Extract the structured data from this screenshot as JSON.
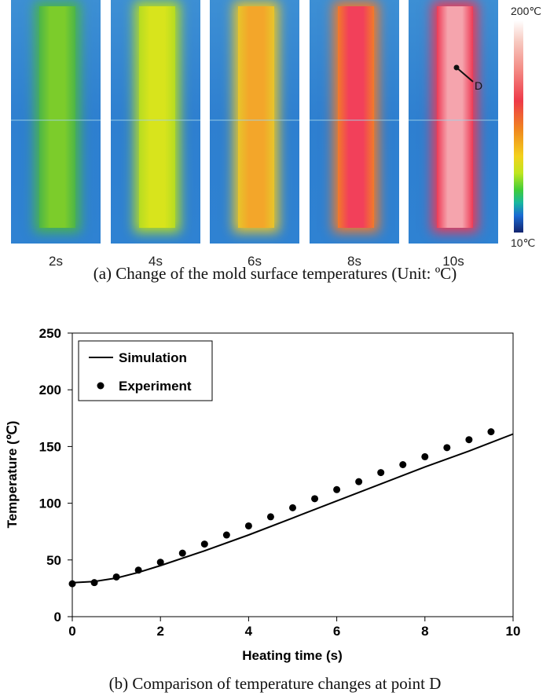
{
  "thermal_images": {
    "panels": [
      {
        "time": "2s",
        "core": "#7ccc2b",
        "edge": "#4cb548"
      },
      {
        "time": "4s",
        "core": "#d8e41c",
        "edge": "#b6dc22"
      },
      {
        "time": "6s",
        "core": "#f3a62a",
        "edge": "#e7c52b"
      },
      {
        "time": "8s",
        "core": "#f2405a",
        "edge": "#f17b2a"
      },
      {
        "time": "10s",
        "core": "#f5a4ad",
        "edge": "#ee3a55"
      }
    ],
    "scale_max": "200℃",
    "scale_min": "10℃",
    "point_label": "D"
  },
  "captions": {
    "a": "(a) Change of the mold surface temperatures (Unit: ºC)",
    "b": "(b) Comparison of temperature changes at point D"
  },
  "chart_data": {
    "type": "line",
    "title": "",
    "xlabel": "Heating time (s)",
    "ylabel": "Temperature (℃)",
    "xlim": [
      0,
      10
    ],
    "ylim": [
      0,
      250
    ],
    "xticks": [
      0,
      2,
      4,
      6,
      8,
      10
    ],
    "yticks": [
      0,
      50,
      100,
      150,
      200,
      250
    ],
    "legend": [
      "Simulation",
      "Experiment"
    ],
    "series": [
      {
        "name": "Simulation",
        "kind": "line",
        "x": [
          0,
          0.5,
          1,
          1.5,
          2,
          3,
          4,
          5,
          6,
          7,
          8,
          9,
          10
        ],
        "y": [
          30,
          31,
          34,
          39,
          45,
          58,
          72,
          87,
          102,
          117,
          132,
          146,
          161
        ]
      },
      {
        "name": "Experiment",
        "kind": "scatter",
        "x": [
          0,
          0.5,
          1,
          1.5,
          2,
          2.5,
          3,
          3.5,
          4,
          4.5,
          5,
          5.5,
          6,
          6.5,
          7,
          7.5,
          8,
          8.5,
          9,
          9.5
        ],
        "y": [
          29,
          30,
          35,
          41,
          48,
          56,
          64,
          72,
          80,
          88,
          96,
          104,
          112,
          119,
          127,
          134,
          141,
          149,
          156,
          163
        ]
      }
    ]
  }
}
